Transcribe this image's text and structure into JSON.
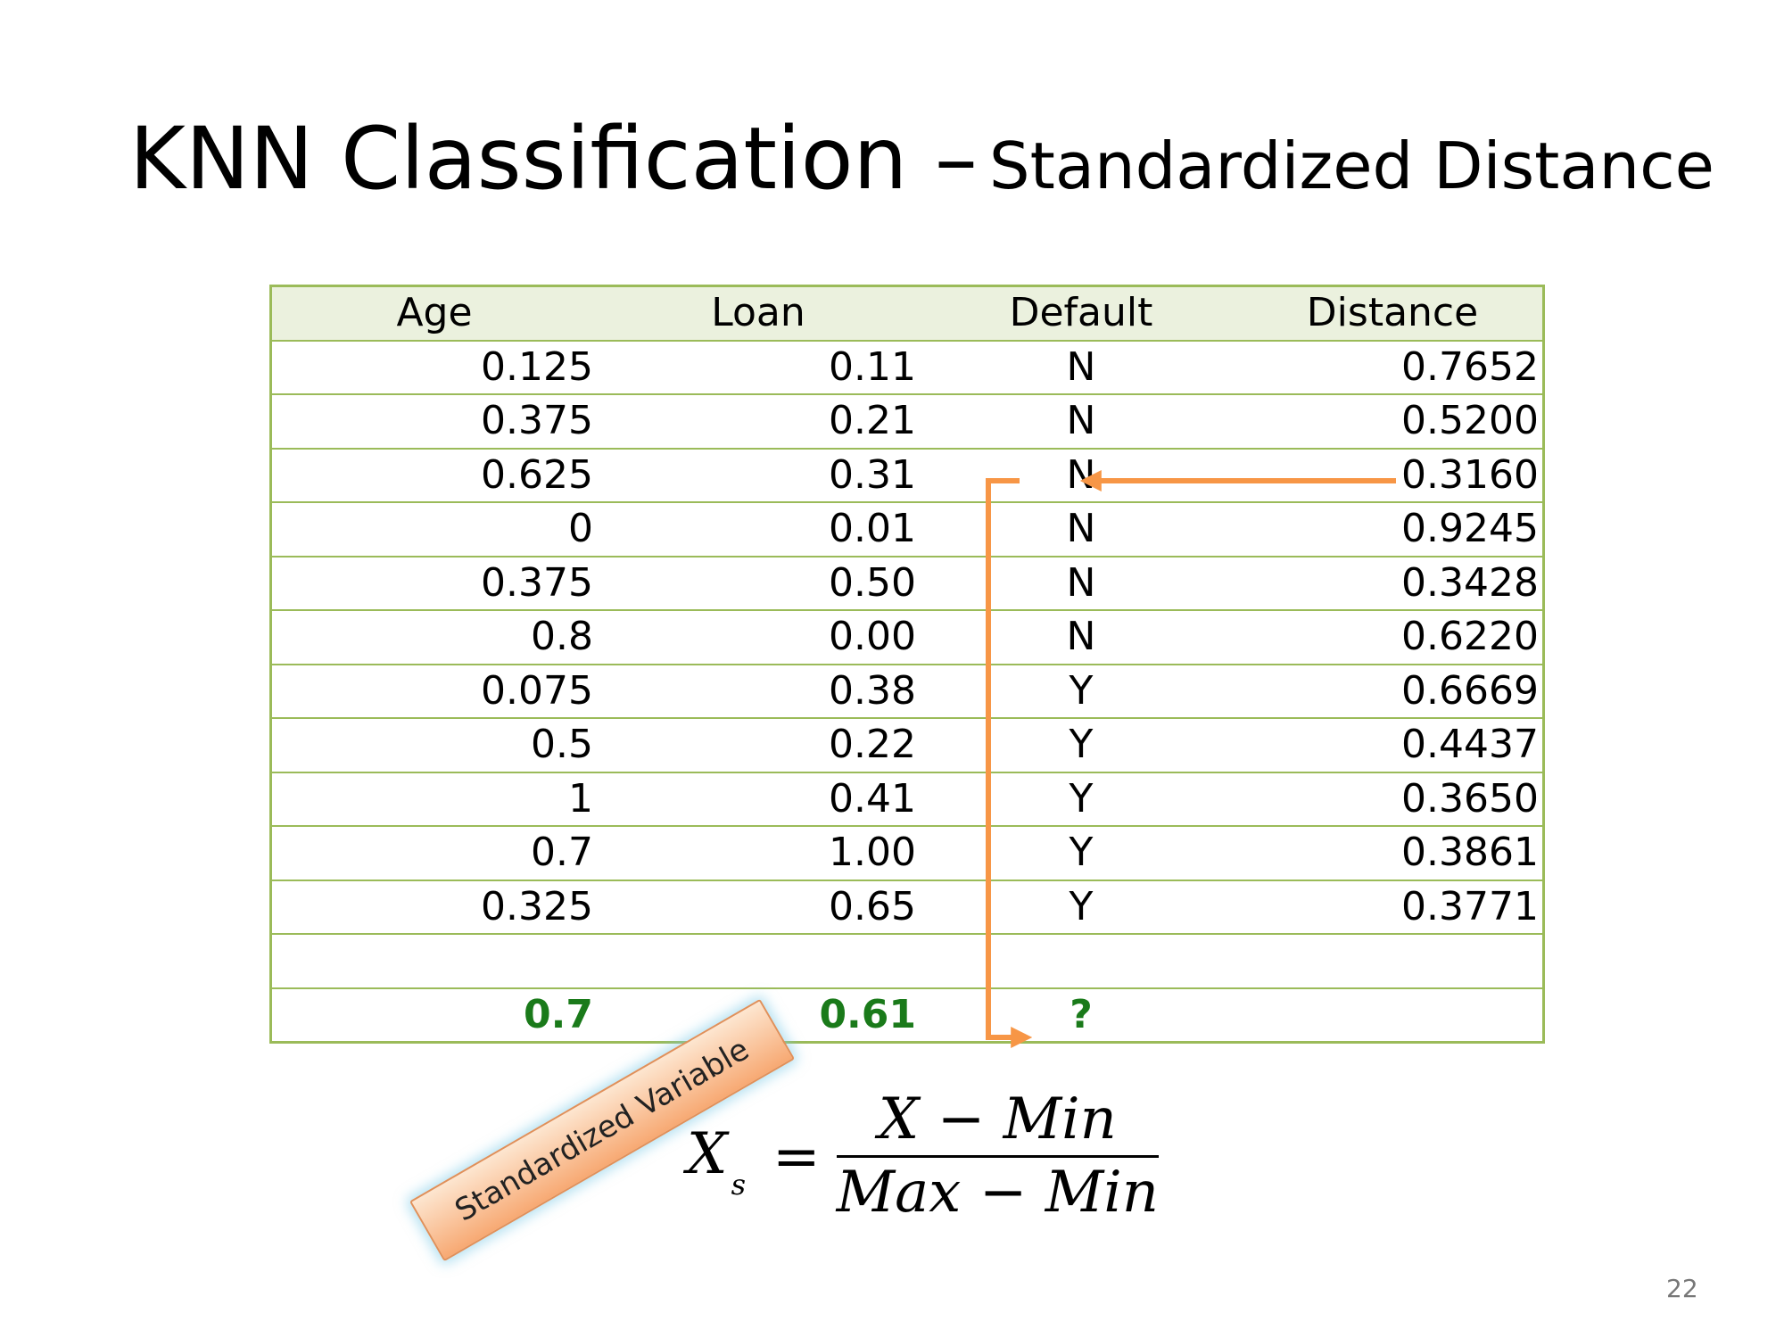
{
  "title": {
    "main": "KNN Classification –",
    "sub": "Standardized Distance"
  },
  "table": {
    "headers": [
      "Age",
      "Loan",
      "Default",
      "Distance"
    ],
    "rows": [
      [
        "0.125",
        "0.11",
        "N",
        "0.7652"
      ],
      [
        "0.375",
        "0.21",
        "N",
        "0.5200"
      ],
      [
        "0.625",
        "0.31",
        "N",
        "0.3160"
      ],
      [
        "0",
        "0.01",
        "N",
        "0.9245"
      ],
      [
        "0.375",
        "0.50",
        "N",
        "0.3428"
      ],
      [
        "0.8",
        "0.00",
        "N",
        "0.6220"
      ],
      [
        "0.075",
        "0.38",
        "Y",
        "0.6669"
      ],
      [
        "0.5",
        "0.22",
        "Y",
        "0.4437"
      ],
      [
        "1",
        "0.41",
        "Y",
        "0.3650"
      ],
      [
        "0.7",
        "1.00",
        "Y",
        "0.3861"
      ],
      [
        "0.325",
        "0.65",
        "Y",
        "0.3771"
      ],
      [
        "",
        "",
        "",
        ""
      ]
    ],
    "query": [
      "0.7",
      "0.61",
      "?",
      ""
    ]
  },
  "tag": {
    "label": "Standardized Variable"
  },
  "formula": {
    "lhs": "X",
    "lhs_sub": "s",
    "eq": "=",
    "numerator": "X − Min",
    "denominator": "Max − Min"
  },
  "page_number": "22",
  "colors": {
    "table_border": "#9bbb59",
    "header_fill": "#ebf1de",
    "query_text": "#1a7a1a",
    "arrow": "#f79646"
  }
}
